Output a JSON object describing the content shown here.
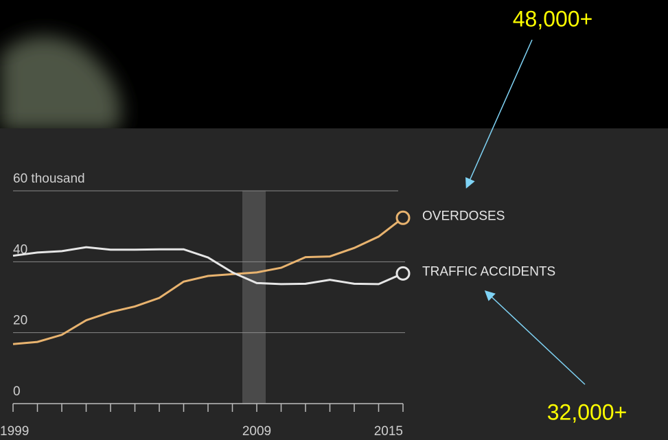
{
  "chart_data": {
    "type": "line",
    "x": [
      1999,
      2000,
      2001,
      2002,
      2003,
      2004,
      2005,
      2006,
      2007,
      2008,
      2009,
      2010,
      2011,
      2012,
      2013,
      2014,
      2015
    ],
    "series": [
      {
        "name": "OVERDOSES",
        "color": "#e8b36f",
        "values": [
          16.8,
          17.4,
          19.4,
          23.5,
          25.8,
          27.4,
          29.8,
          34.4,
          36.0,
          36.5,
          37.0,
          38.3,
          41.3,
          41.5,
          43.9,
          47.1,
          52.4
        ]
      },
      {
        "name": "TRAFFIC ACCIDENTS",
        "color": "#e6e6e6",
        "values": [
          41.7,
          42.6,
          43.0,
          44.1,
          43.4,
          43.4,
          43.5,
          43.5,
          41.2,
          37.0,
          34.0,
          33.7,
          33.8,
          34.9,
          33.8,
          33.7,
          36.7
        ]
      }
    ],
    "xlim": [
      1999,
      2015
    ],
    "xticks": [
      1999,
      2009,
      2015
    ],
    "ylim": [
      0,
      60
    ],
    "yticks": [
      0,
      20,
      40,
      {
        "value": 60,
        "label": "60 thousand"
      }
    ],
    "grid": true,
    "annotations": [
      "48,000+",
      "32,000+"
    ]
  }
}
